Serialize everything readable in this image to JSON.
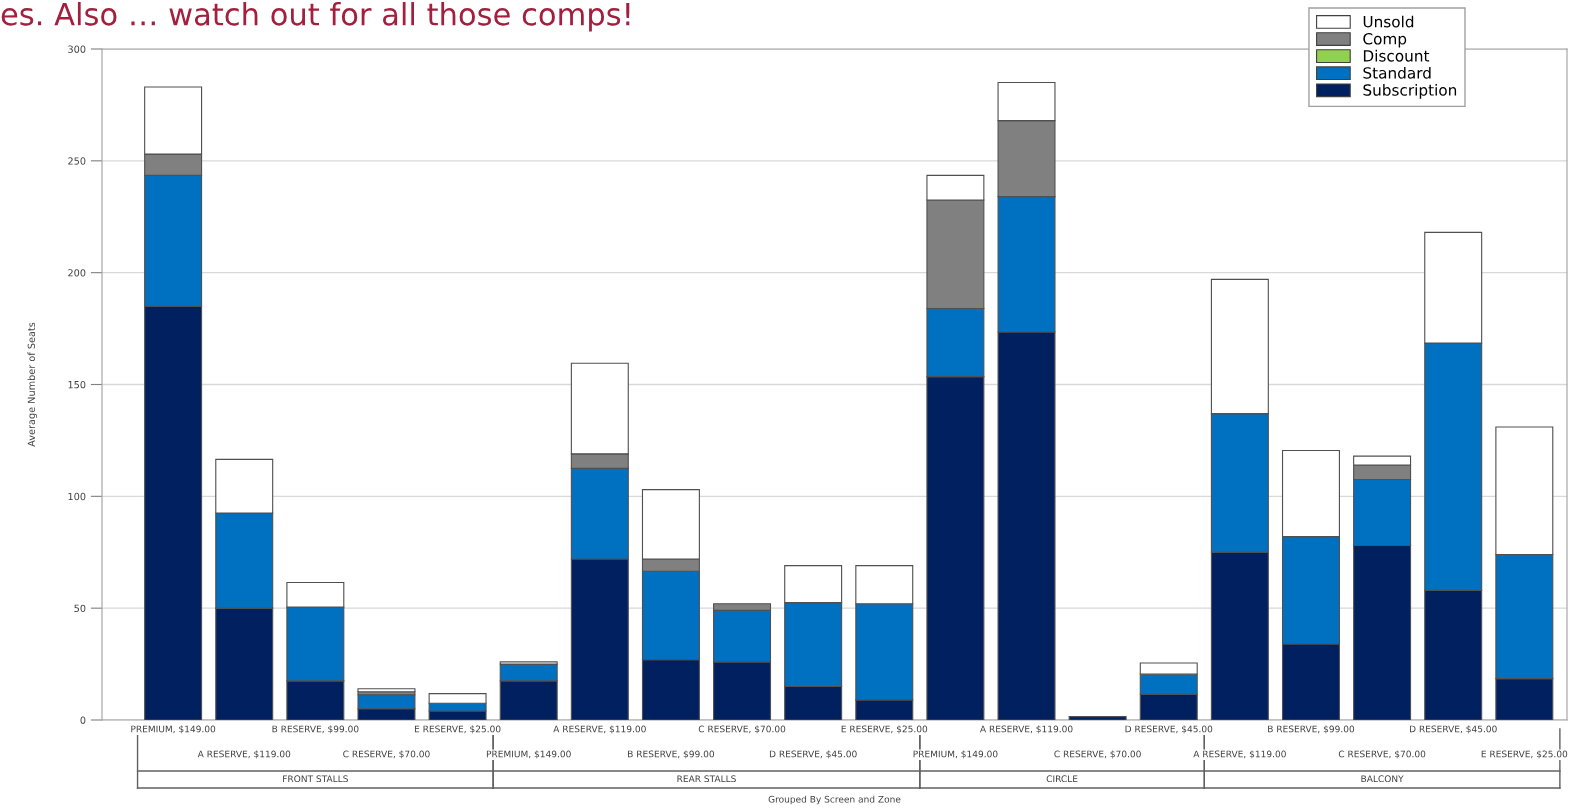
{
  "chart_data": {
    "type": "bar",
    "title": "es. Also … watch out for all those comps!",
    "xlabel": "Grouped By Screen and Zone",
    "ylabel": "Average Number of Seats",
    "categories": [
      "PREMIUM, $149.00",
      "A RESERVE, $119.00",
      "B RESERVE, $99.00",
      "C RESERVE, $70.00",
      "E RESERVE, $25.00",
      "PREMIUM, $149.00",
      "A RESERVE, $119.00",
      "B RESERVE, $99.00",
      "C RESERVE, $70.00",
      "D RESERVE, $45.00",
      "E RESERVE, $25.00",
      "PREMIUM, $149.00",
      "A RESERVE, $119.00",
      "C RESERVE, $70.00",
      "D RESERVE, $45.00",
      "A RESERVE, $119.00",
      "B RESERVE, $99.00",
      "C RESERVE, $70.00",
      "D RESERVE, $45.00",
      "E RESERVE, $25.00"
    ],
    "series": [
      {
        "name": "Subscription",
        "color": "#002060",
        "values": [
          185,
          50,
          17.5,
          5,
          4,
          17.5,
          72,
          27,
          26,
          15,
          9,
          153.5,
          173.5,
          1.5,
          11.5,
          75,
          34,
          78,
          58,
          18.5
        ]
      },
      {
        "name": "Standard",
        "color": "#0070c0",
        "values": [
          58.5,
          42.5,
          33,
          6.3,
          3.5,
          7.5,
          40.5,
          39.5,
          23,
          37.5,
          43,
          30.5,
          60.5,
          0,
          9,
          62,
          48,
          29.5,
          110.5,
          55.5
        ]
      },
      {
        "name": "Discount",
        "color": "#92d050",
        "values": [
          0,
          0,
          0,
          0,
          0,
          0,
          0,
          0,
          0,
          0,
          0,
          0,
          0,
          0,
          0,
          0,
          0,
          0,
          0,
          0
        ]
      },
      {
        "name": "Comp",
        "color": "#808080",
        "values": [
          9.5,
          0,
          0,
          1.3,
          0,
          0,
          6.5,
          5.5,
          3,
          0,
          0,
          48.5,
          34,
          0,
          0,
          0,
          0,
          6.5,
          0,
          0
        ]
      },
      {
        "name": "Unsold",
        "color": "#ffffff",
        "values": [
          30,
          24,
          11,
          1.4,
          4.3,
          1,
          40.5,
          31,
          0,
          16.5,
          17,
          11,
          17,
          0,
          5,
          60,
          38.5,
          4,
          49.5,
          57
        ]
      }
    ],
    "stacked": true,
    "ylim": [
      0,
      300
    ],
    "yticks": [
      0,
      50,
      100,
      150,
      200,
      250,
      300
    ],
    "grid": "y",
    "legend": "top right",
    "annotations": [
      "FRONT STALLS",
      "REAR STALLS",
      "CIRCLE",
      "BALCONY"
    ]
  }
}
